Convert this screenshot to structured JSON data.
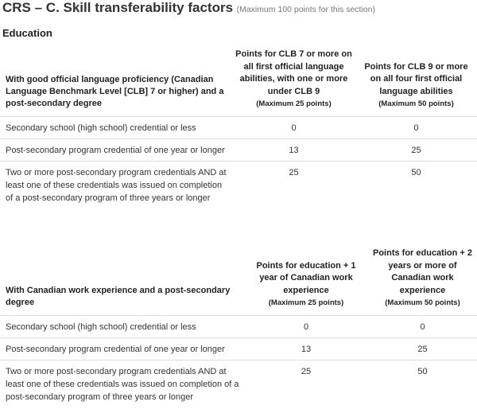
{
  "title": "CRS – C. Skill transferability factors",
  "subtitle": "(Maximum 100 points for this section)",
  "section_heading": "Education",
  "table1": {
    "header": {
      "main": "With good official language proficiency (Canadian Language Benchmark Level [CLB] 7 or higher) and a post-secondary degree",
      "col1": "Points for CLB 7 or more on all first official language abilities, with one or more under CLB 9",
      "col1_max": "(Maximum 25 points)",
      "col2": "Points for CLB 9 or more on all four first official language abilities",
      "col2_max": "(Maximum 50 points)"
    },
    "rows": [
      {
        "label": "Secondary school (high school) credential or less",
        "col1": "0",
        "col2": "0"
      },
      {
        "label": "Post-secondary program credential of one year or longer",
        "col1": "13",
        "col2": "25"
      },
      {
        "label": "Two or more post-secondary program credentials AND at least one of these credentials was issued on completion of a post-secondary program of three years or longer",
        "col1": "25",
        "col2": "50"
      }
    ]
  },
  "table2": {
    "header": {
      "main": "With Canadian work experience and a post-secondary degree",
      "col1": "Points for education + 1 year of Canadian work experience",
      "col1_max": "(Maximum 25 points)",
      "col2": "Points for education + 2 years or more of Canadian work experience",
      "col2_max": "(Maximum 50 points)"
    },
    "rows": [
      {
        "label": "Secondary school (high school) credential or less",
        "col1": "0",
        "col2": "0"
      },
      {
        "label": "Post-secondary program credential of one year or longer",
        "col1": "13",
        "col2": "25"
      },
      {
        "label": "Two or more post-secondary program credentials AND at least one of these credentials was issued on completion of a post-secondary program of three years or longer",
        "col1": "25",
        "col2": "50"
      }
    ]
  }
}
